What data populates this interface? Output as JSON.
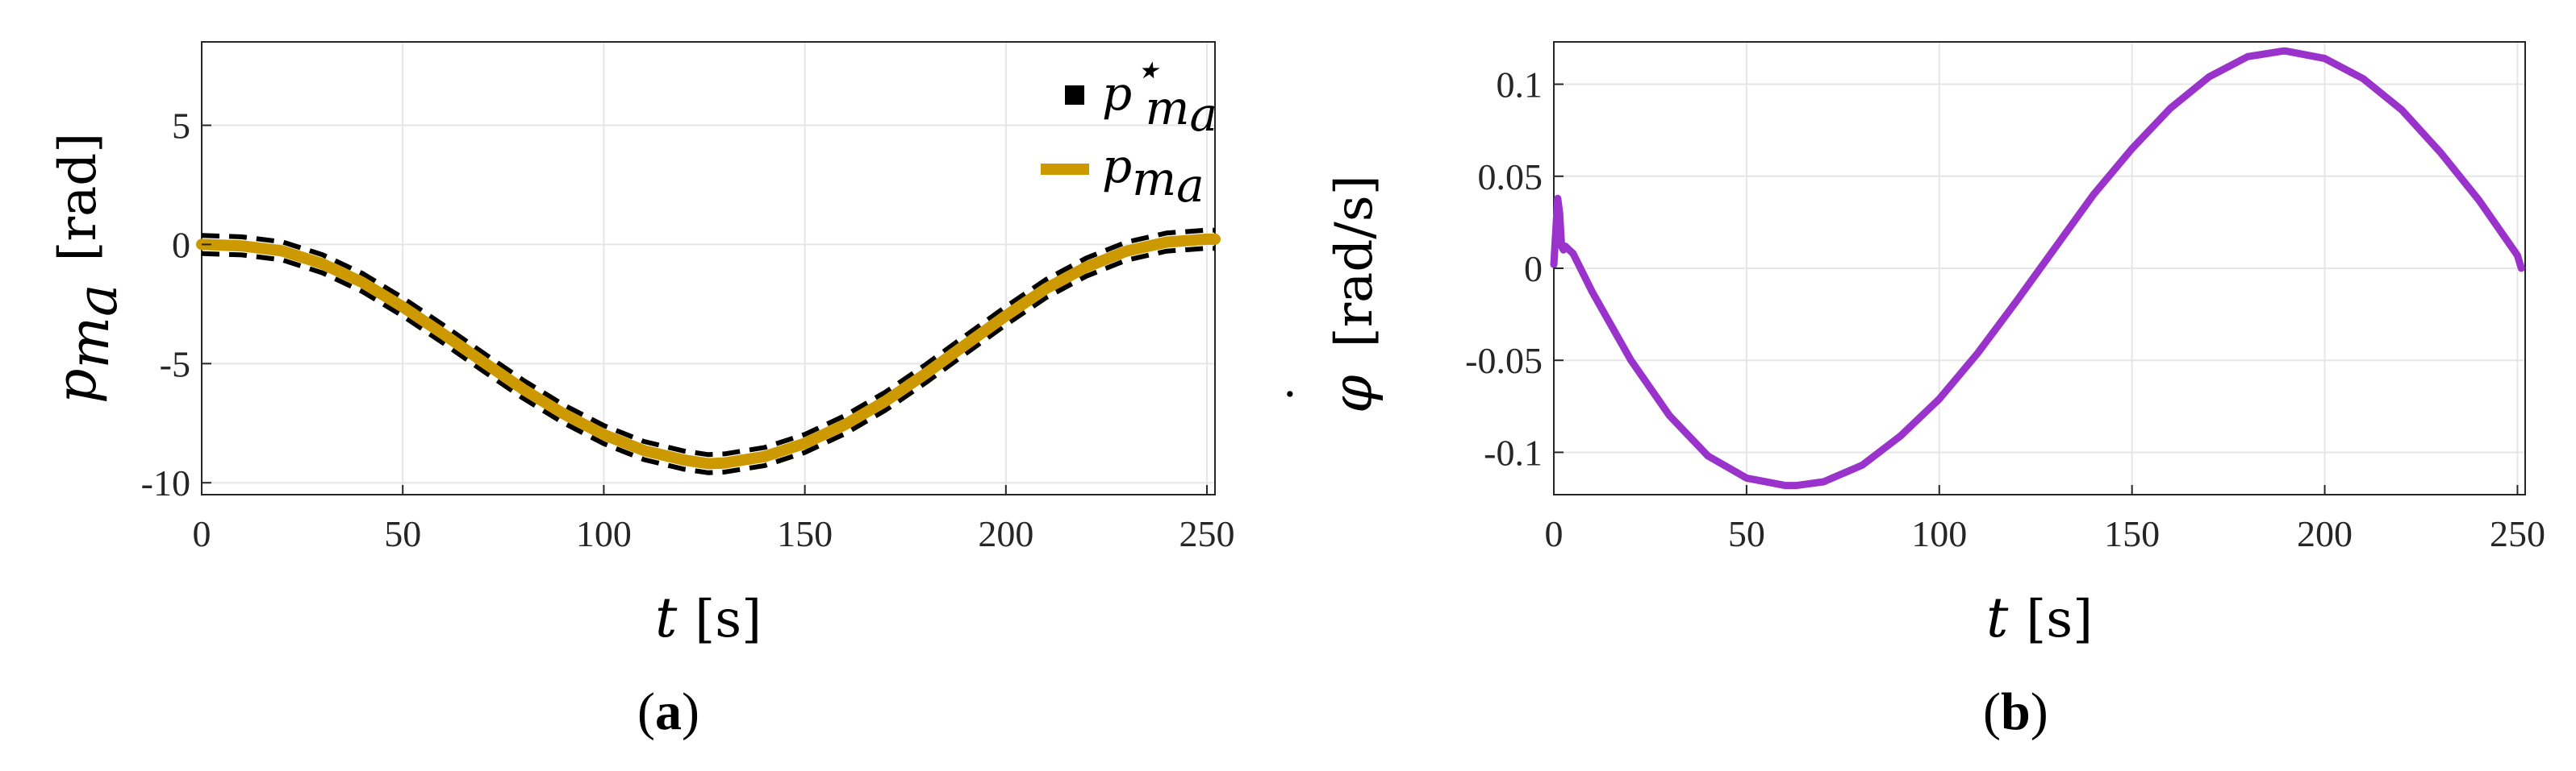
{
  "chart_data": [
    {
      "type": "line",
      "panel_label": "a",
      "xlabel_var": "t",
      "xlabel_unit": "[s]",
      "ylabel_var": "p",
      "ylabel_sub": "m",
      "ylabel_subsub": "a",
      "ylabel_unit": "[rad]",
      "xlim": [
        0,
        252
      ],
      "ylim": [
        -10.5,
        8.5
      ],
      "xticks": [
        0,
        50,
        100,
        150,
        200,
        250
      ],
      "yticks": [
        -10,
        -5,
        0,
        5
      ],
      "ytick_labels": [
        "-10",
        "-5",
        "0",
        "5"
      ],
      "grid": true,
      "legend_position": "top-right",
      "legend": [
        {
          "name_var": "p",
          "name_sup": "⋆",
          "name_sub": "m",
          "name_subsub": "a",
          "style": "black square"
        },
        {
          "name_var": "p",
          "name_sub": "m",
          "name_subsub": "a",
          "style": "gold line"
        }
      ],
      "series": [
        {
          "name": "p_ma",
          "color": "#CC9900",
          "x": [
            0,
            10,
            20,
            30,
            40,
            50,
            60,
            70,
            80,
            90,
            100,
            110,
            120,
            126,
            130,
            140,
            150,
            160,
            170,
            180,
            190,
            200,
            210,
            220,
            230,
            240,
            250,
            252
          ],
          "y": [
            0,
            -0.06,
            -0.27,
            -0.81,
            -1.6,
            -2.62,
            -3.75,
            -4.93,
            -6.08,
            -7.11,
            -7.98,
            -8.65,
            -9.05,
            -9.2,
            -9.17,
            -8.9,
            -8.35,
            -7.56,
            -6.58,
            -5.43,
            -4.2,
            -2.99,
            -1.85,
            -0.95,
            -0.28,
            0.1,
            0.22,
            0.22
          ]
        },
        {
          "name": "upper_dashed",
          "color": "#000000",
          "dashed": true,
          "offset": 0.38
        },
        {
          "name": "lower_dashed",
          "color": "#000000",
          "dashed": true,
          "offset": -0.38
        }
      ]
    },
    {
      "type": "line",
      "panel_label": "b",
      "xlabel_var": "t",
      "xlabel_unit": "[s]",
      "ylabel_var": "φ",
      "ylabel_accent": "˙",
      "ylabel_unit": "[rad/s]",
      "xlim": [
        0,
        252
      ],
      "ylim": [
        -0.123,
        0.123
      ],
      "xticks": [
        0,
        50,
        100,
        150,
        200,
        250
      ],
      "yticks": [
        0.1,
        0.05,
        0,
        -0.05,
        -0.1
      ],
      "ytick_labels": [
        "0.1",
        "0.05",
        "0",
        "-0.05",
        "-0.1"
      ],
      "grid": true,
      "series": [
        {
          "name": "phi_dot",
          "color": "#9933CC",
          "x": [
            0,
            0.5,
            1,
            1.5,
            2,
            2.5,
            3,
            4,
            5,
            10,
            20,
            30,
            40,
            50,
            60,
            63,
            70,
            80,
            90,
            100,
            110,
            120,
            130,
            140,
            150,
            160,
            170,
            180,
            189,
            190,
            200,
            210,
            220,
            230,
            240,
            250,
            251
          ],
          "y": [
            0.002,
            0.02,
            0.038,
            0.03,
            0.012,
            0.01,
            0.012,
            0.01,
            0.008,
            -0.013,
            -0.05,
            -0.08,
            -0.102,
            -0.114,
            -0.118,
            -0.118,
            -0.116,
            -0.107,
            -0.091,
            -0.071,
            -0.046,
            -0.018,
            0.011,
            0.04,
            0.065,
            0.087,
            0.104,
            0.115,
            0.118,
            0.118,
            0.114,
            0.103,
            0.086,
            0.063,
            0.037,
            0.007,
            0.0
          ]
        }
      ]
    }
  ],
  "axis_colors": {
    "frame": "#262626",
    "grid": "#e6e6e6"
  }
}
